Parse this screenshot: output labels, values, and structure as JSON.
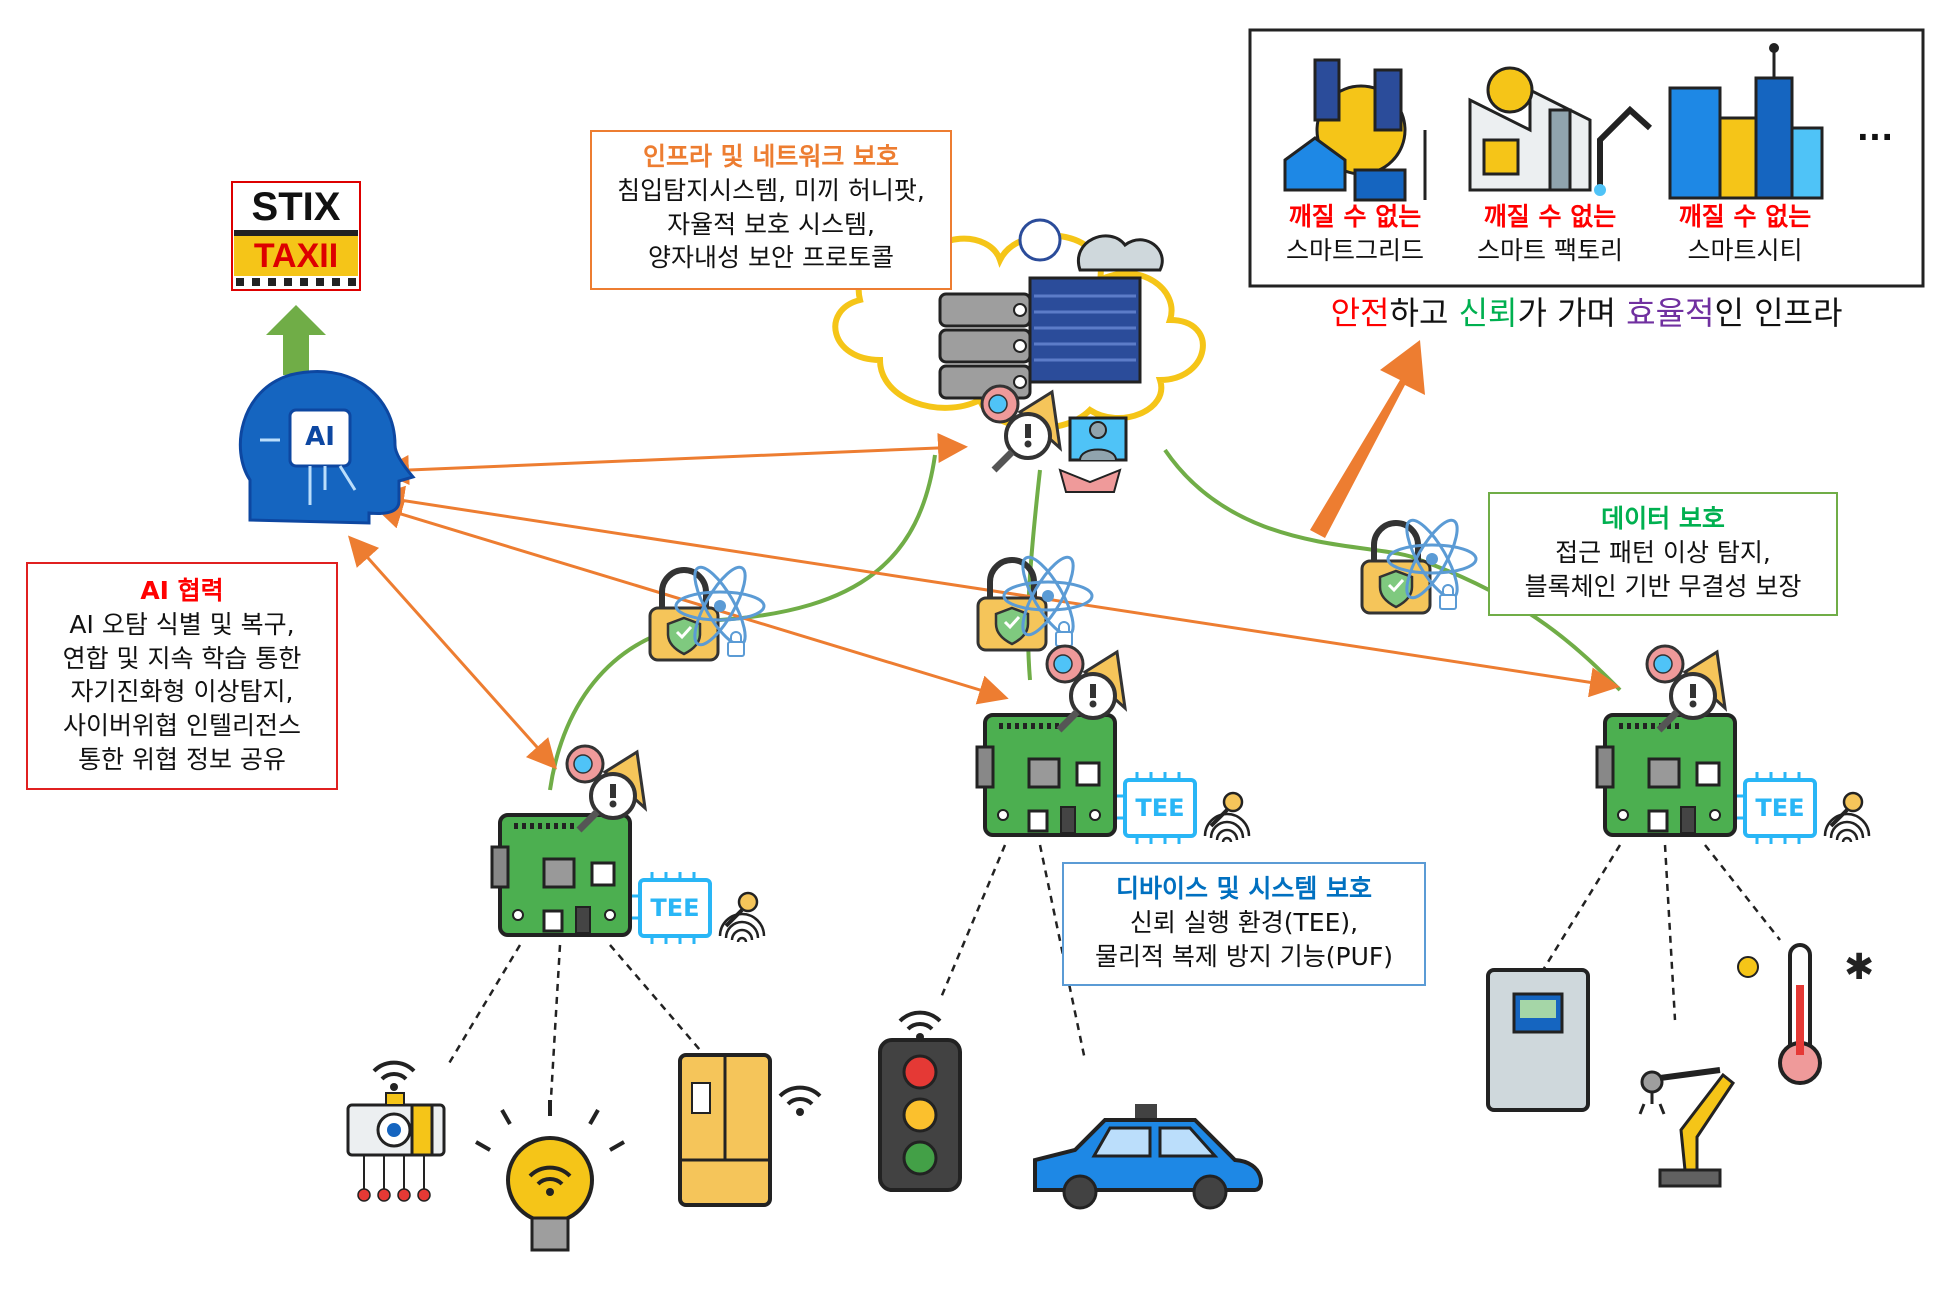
{
  "stix_taxii": {
    "stix": "STIX",
    "taxii": "TAXII"
  },
  "ai_head": {
    "label": "AI"
  },
  "boxes": {
    "infra": {
      "title": "인프라 및 네트워크 보호",
      "lines": [
        "침입탐지시스템, 미끼 허니팟,",
        "자율적 보호 시스템,",
        "양자내성 보안 프로토콜"
      ],
      "title_color": "#ed7d31",
      "border_color": "#ed7d31"
    },
    "ai": {
      "title": "AI 협력",
      "lines": [
        "AI 오탐 식별 및 복구,",
        "연합 및 지속 학습 통한",
        "자기진화형 이상탐지,",
        "사이버위협 인텔리전스",
        "통한 위협 정보 공유"
      ],
      "title_color": "#ff0000",
      "border_color": "#e02020"
    },
    "data": {
      "title": "데이터 보호",
      "lines": [
        "접근 패턴 이상 탐지,",
        "블록체인 기반 무결성 보장"
      ],
      "title_color": "#00b050",
      "border_color": "#70ad47"
    },
    "device": {
      "title": "디바이스 및 시스템 보호",
      "lines": [
        "신뢰 실행 환경(TEE),",
        "물리적 복제 방지 기능(PUF)"
      ],
      "title_color": "#0070c0",
      "border_color": "#5b9bd5"
    }
  },
  "showcase": {
    "items": [
      {
        "top": "깨질 수 없는",
        "bottom": "스마트그리드"
      },
      {
        "top": "깨질 수 없는",
        "bottom": "스마트 팩토리"
      },
      {
        "top": "깨질 수 없는",
        "bottom": "스마트시티"
      }
    ],
    "ellipsis": "...",
    "top_color": "#ff0000"
  },
  "tagline": {
    "parts": [
      {
        "text": "안전",
        "color": "#ff0000"
      },
      {
        "text": "하고 ",
        "color": "#111111"
      },
      {
        "text": "신뢰",
        "color": "#00b050"
      },
      {
        "text": "가 가며 ",
        "color": "#111111"
      },
      {
        "text": "효율적",
        "color": "#7030a0"
      },
      {
        "text": "인 인프라",
        "color": "#111111"
      }
    ]
  },
  "chips": {
    "tee_label": "TEE"
  },
  "colors": {
    "orange_arrow": "#ed7d31",
    "green_link": "#70ad47",
    "cloud_outline": "#f5c518",
    "board_green": "#4caf50"
  }
}
